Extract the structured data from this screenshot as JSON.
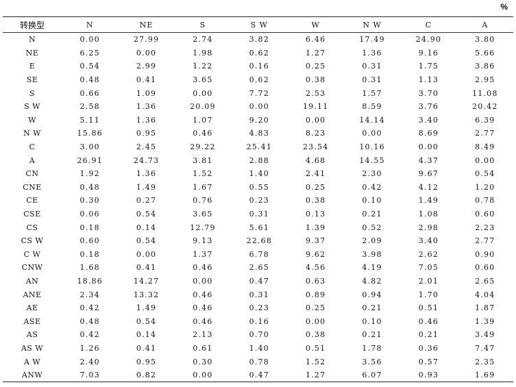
{
  "unit": "%",
  "table": {
    "headers": [
      "转换型",
      "N",
      "NE",
      "S",
      "S W",
      "W",
      "N W",
      "C",
      "A"
    ],
    "rows": [
      [
        "N",
        "0.00",
        "27.99",
        "2.74",
        "3.82",
        "6.46",
        "17.49",
        "24.90",
        "3.80"
      ],
      [
        "NE",
        "6.25",
        "0.00",
        "1.98",
        "0.62",
        "1.27",
        "1.36",
        "9.16",
        "5.66"
      ],
      [
        "E",
        "0.54",
        "2.99",
        "1.22",
        "0.16",
        "0.25",
        "0.31",
        "1.75",
        "3.86"
      ],
      [
        "SE",
        "0.48",
        "0.41",
        "3.65",
        "0.62",
        "0.38",
        "0.31",
        "1.13",
        "2.95"
      ],
      [
        "S",
        "0.66",
        "1.09",
        "0.00",
        "7.72",
        "2.53",
        "1.57",
        "3.70",
        "11.08"
      ],
      [
        "S W",
        "2.58",
        "1.36",
        "20.09",
        "0.00",
        "19.11",
        "8.59",
        "3.76",
        "20.42"
      ],
      [
        "W",
        "5.11",
        "1.36",
        "1.07",
        "9.20",
        "0.00",
        "14.14",
        "3.40",
        "6.39"
      ],
      [
        "N W",
        "15.86",
        "0.95",
        "0.46",
        "4.83",
        "8.23",
        "0.00",
        "8.69",
        "2.77"
      ],
      [
        "C",
        "3.00",
        "2.45",
        "29.22",
        "25.41",
        "23.54",
        "10.16",
        "0.00",
        "8.49"
      ],
      [
        "A",
        "26.91",
        "24.73",
        "3.81",
        "2.88",
        "4.68",
        "14.55",
        "4.37",
        "0.00"
      ],
      [
        "CN",
        "1.92",
        "1.36",
        "1.52",
        "1.40",
        "2.41",
        "2.30",
        "9.67",
        "0.54"
      ],
      [
        "CNE",
        "0.48",
        "1.49",
        "1.67",
        "0.55",
        "0.25",
        "0.42",
        "4.12",
        "1.20"
      ],
      [
        "CE",
        "0.30",
        "0.27",
        "0.76",
        "0.23",
        "0.38",
        "0.10",
        "1.49",
        "0.78"
      ],
      [
        "CSE",
        "0.06",
        "0.54",
        "3.65",
        "0.31",
        "0.13",
        "0.21",
        "1.08",
        "0.60"
      ],
      [
        "CS",
        "0.18",
        "0.14",
        "12.79",
        "5.61",
        "1.39",
        "0.52",
        "2.98",
        "2.23"
      ],
      [
        "CS W",
        "0.60",
        "0.54",
        "9.13",
        "22.68",
        "9.37",
        "2.09",
        "3.40",
        "2.77"
      ],
      [
        "C W",
        "0.18",
        "0.00",
        "1.37",
        "6.78",
        "9.62",
        "3.98",
        "2.62",
        "0.90"
      ],
      [
        "CNW",
        "1.68",
        "0.41",
        "0.46",
        "2.65",
        "4.56",
        "4.19",
        "7.05",
        "0.60"
      ],
      [
        "AN",
        "18.86",
        "14.27",
        "0.00",
        "0.47",
        "0.63",
        "4.82",
        "2.01",
        "2.65"
      ],
      [
        "ANE",
        "2.34",
        "13.32",
        "0.46",
        "0.31",
        "0.89",
        "0.94",
        "1.70",
        "4.04"
      ],
      [
        "AE",
        "0.42",
        "1.49",
        "0.46",
        "0.23",
        "0.25",
        "0.21",
        "0.51",
        "1.87"
      ],
      [
        "ASE",
        "0.48",
        "0.54",
        "0.46",
        "0.16",
        "0.00",
        "0.10",
        "0.46",
        "1.39"
      ],
      [
        "AS",
        "0.42",
        "0.14",
        "2.13",
        "0.70",
        "0.38",
        "0.21",
        "0.21",
        "3.49"
      ],
      [
        "AS W",
        "1.26",
        "0.41",
        "0.61",
        "1.40",
        "0.51",
        "1.78",
        "0.36",
        "7.47"
      ],
      [
        "A W",
        "2.40",
        "0.95",
        "0.30",
        "0.78",
        "1.52",
        "3.56",
        "0.57",
        "2.35"
      ],
      [
        "ANW",
        "7.03",
        "0.82",
        "0.00",
        "0.47",
        "1.27",
        "6.07",
        "0.93",
        "1.69"
      ]
    ]
  }
}
